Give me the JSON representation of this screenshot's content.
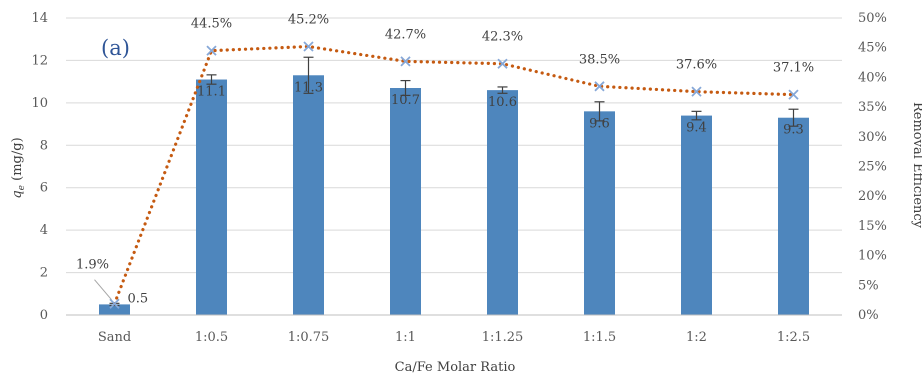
{
  "chart_data": {
    "type": "bar",
    "panel_label": "(a)",
    "categories": [
      "Sand",
      "1:0.5",
      "1:0.75",
      "1:1",
      "1:1.25",
      "1:1.5",
      "1:2",
      "1:2.5"
    ],
    "xlabel": "Ca/Fe Molar Ratio",
    "ylabel_left_symbol": "q",
    "ylabel_left_subscript": "e",
    "ylabel_left_unit": " (mg/g)",
    "ylabel_right": "Removal Efficiency",
    "ylim_left": [
      0,
      14
    ],
    "yticks_left": [
      "0",
      "2",
      "4",
      "6",
      "8",
      "10",
      "12",
      "14"
    ],
    "ylim_right": [
      0,
      50
    ],
    "yticks_right": [
      "0%",
      "5%",
      "10%",
      "15%",
      "20%",
      "25%",
      "30%",
      "35%",
      "40%",
      "45%",
      "50%"
    ],
    "grid": true,
    "series": [
      {
        "kind": "bar",
        "axis": "left",
        "color": "#4e86bd",
        "values": [
          0.5,
          11.1,
          11.3,
          10.7,
          10.6,
          9.6,
          9.4,
          9.3
        ],
        "labels": [
          "0.5",
          "11.1",
          "11.3",
          "10.7",
          "10.6",
          "9.6",
          "9.4",
          "9.3"
        ],
        "error": [
          0.05,
          0.22,
          0.85,
          0.35,
          0.15,
          0.45,
          0.2,
          0.4
        ]
      },
      {
        "kind": "line",
        "axis": "right",
        "color": "#c55a11",
        "marker_color": "#86a8d8",
        "values": [
          1.9,
          44.5,
          45.2,
          42.7,
          42.3,
          38.5,
          37.6,
          37.1
        ],
        "labels": [
          "1.9%",
          "44.5%",
          "45.2%",
          "42.7%",
          "42.3%",
          "38.5%",
          "37.6%",
          "37.1%"
        ]
      }
    ]
  }
}
